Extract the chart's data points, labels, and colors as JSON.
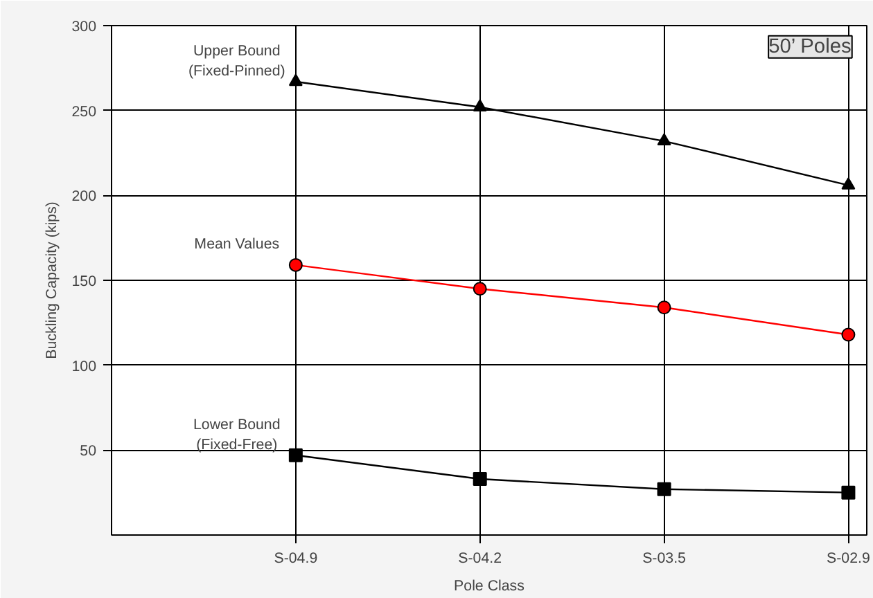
{
  "chart_data": {
    "type": "line",
    "xlabel": "Pole Class",
    "ylabel": "Buckling Capacity (kips)",
    "categories": [
      "S-04.9",
      "S-04.2",
      "S-03.5",
      "S-02.9"
    ],
    "series": [
      {
        "name": "Upper Bound\n(Fixed-Pinned)",
        "color": "#000000",
        "marker": "triangle",
        "values": [
          267,
          252,
          232,
          206
        ]
      },
      {
        "name": "Mean Values",
        "color": "#ff0000",
        "marker": "circle",
        "values": [
          159,
          145,
          134,
          118
        ]
      },
      {
        "name": "Lower Bound\n(Fixed-Free)",
        "color": "#000000",
        "marker": "square",
        "values": [
          47,
          33,
          27,
          25
        ]
      }
    ],
    "annotations": [
      "50’ Poles"
    ],
    "ylim": [
      0,
      300
    ],
    "yticks": [
      50,
      100,
      150,
      200,
      250,
      300
    ],
    "grid": true
  }
}
